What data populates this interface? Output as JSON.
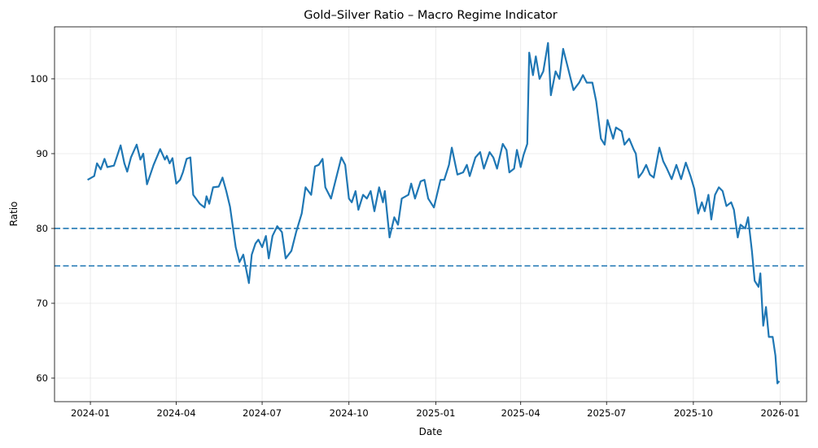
{
  "chart_data": {
    "type": "line",
    "title": "Gold–Silver Ratio – Macro Regime Indicator",
    "xlabel": "Date",
    "ylabel": "Ratio",
    "xlim": [
      "2023-11-24",
      "2026-01-29"
    ],
    "ylim": [
      56.85,
      106.95
    ],
    "grid": true,
    "x_ticks": [
      "2024-01",
      "2024-04",
      "2024-07",
      "2024-10",
      "2025-01",
      "2025-04",
      "2025-07",
      "2025-10",
      "2026-01"
    ],
    "y_ticks": [
      60,
      70,
      80,
      90,
      100
    ],
    "line_color": "#1f77b4",
    "reference_lines": [
      {
        "y": 80,
        "style": "dashed",
        "color": "#1f77b4"
      },
      {
        "y": 75,
        "style": "dashed",
        "color": "#1f77b4"
      }
    ],
    "series": [
      {
        "points": [
          [
            "2023-12-29",
            86.5
          ],
          [
            "2024-01-05",
            87.0
          ],
          [
            "2024-01-08",
            88.7
          ],
          [
            "2024-01-12",
            87.9
          ],
          [
            "2024-01-16",
            89.3
          ],
          [
            "2024-01-19",
            88.2
          ],
          [
            "2024-01-26",
            88.4
          ],
          [
            "2024-02-02",
            91.1
          ],
          [
            "2024-02-06",
            88.7
          ],
          [
            "2024-02-09",
            87.6
          ],
          [
            "2024-02-13",
            89.5
          ],
          [
            "2024-02-19",
            91.2
          ],
          [
            "2024-02-23",
            89.2
          ],
          [
            "2024-02-26",
            90.0
          ],
          [
            "2024-03-01",
            85.9
          ],
          [
            "2024-03-08",
            88.5
          ],
          [
            "2024-03-15",
            90.6
          ],
          [
            "2024-03-20",
            89.2
          ],
          [
            "2024-03-22",
            89.7
          ],
          [
            "2024-03-25",
            88.7
          ],
          [
            "2024-03-28",
            89.4
          ],
          [
            "2024-04-01",
            86.0
          ],
          [
            "2024-04-05",
            86.5
          ],
          [
            "2024-04-08",
            87.5
          ],
          [
            "2024-04-12",
            89.3
          ],
          [
            "2024-04-16",
            89.5
          ],
          [
            "2024-04-19",
            84.5
          ],
          [
            "2024-04-26",
            83.3
          ],
          [
            "2024-05-01",
            82.8
          ],
          [
            "2024-05-03",
            84.3
          ],
          [
            "2024-05-06",
            83.3
          ],
          [
            "2024-05-10",
            85.5
          ],
          [
            "2024-05-16",
            85.6
          ],
          [
            "2024-05-20",
            86.8
          ],
          [
            "2024-05-24",
            85.0
          ],
          [
            "2024-05-28",
            82.9
          ],
          [
            "2024-06-03",
            77.5
          ],
          [
            "2024-06-07",
            75.5
          ],
          [
            "2024-06-11",
            76.5
          ],
          [
            "2024-06-17",
            72.7
          ],
          [
            "2024-06-20",
            76.5
          ],
          [
            "2024-06-24",
            78.0
          ],
          [
            "2024-06-27",
            78.5
          ],
          [
            "2024-07-01",
            77.5
          ],
          [
            "2024-07-05",
            79.0
          ],
          [
            "2024-07-08",
            76.0
          ],
          [
            "2024-07-12",
            79.0
          ],
          [
            "2024-07-17",
            80.3
          ],
          [
            "2024-07-22",
            79.5
          ],
          [
            "2024-07-26",
            76.0
          ],
          [
            "2024-08-01",
            77.0
          ],
          [
            "2024-08-06",
            79.5
          ],
          [
            "2024-08-12",
            82.0
          ],
          [
            "2024-08-16",
            85.5
          ],
          [
            "2024-08-22",
            84.5
          ],
          [
            "2024-08-26",
            88.3
          ],
          [
            "2024-08-30",
            88.5
          ],
          [
            "2024-09-03",
            89.3
          ],
          [
            "2024-09-06",
            85.5
          ],
          [
            "2024-09-12",
            84.0
          ],
          [
            "2024-09-18",
            87.0
          ],
          [
            "2024-09-23",
            89.5
          ],
          [
            "2024-09-27",
            88.5
          ],
          [
            "2024-10-01",
            84.0
          ],
          [
            "2024-10-04",
            83.5
          ],
          [
            "2024-10-08",
            85.0
          ],
          [
            "2024-10-11",
            82.5
          ],
          [
            "2024-10-16",
            84.5
          ],
          [
            "2024-10-20",
            84.0
          ],
          [
            "2024-10-24",
            85.0
          ],
          [
            "2024-10-28",
            82.3
          ],
          [
            "2024-11-02",
            85.5
          ],
          [
            "2024-11-06",
            83.5
          ],
          [
            "2024-11-08",
            85.0
          ],
          [
            "2024-11-13",
            78.8
          ],
          [
            "2024-11-18",
            81.5
          ],
          [
            "2024-11-22",
            80.5
          ],
          [
            "2024-11-26",
            84.0
          ],
          [
            "2024-12-03",
            84.5
          ],
          [
            "2024-12-06",
            86.0
          ],
          [
            "2024-12-10",
            84.0
          ],
          [
            "2024-12-16",
            86.3
          ],
          [
            "2024-12-20",
            86.5
          ],
          [
            "2024-12-24",
            84.0
          ],
          [
            "2024-12-30",
            82.8
          ],
          [
            "2025-01-06",
            86.5
          ],
          [
            "2025-01-10",
            86.5
          ],
          [
            "2025-01-15",
            88.5
          ],
          [
            "2025-01-18",
            90.8
          ],
          [
            "2025-01-24",
            87.2
          ],
          [
            "2025-01-30",
            87.5
          ],
          [
            "2025-02-03",
            88.5
          ],
          [
            "2025-02-06",
            87.0
          ],
          [
            "2025-02-12",
            89.5
          ],
          [
            "2025-02-17",
            90.2
          ],
          [
            "2025-02-21",
            88.0
          ],
          [
            "2025-02-27",
            90.2
          ],
          [
            "2025-03-03",
            89.5
          ],
          [
            "2025-03-07",
            88.0
          ],
          [
            "2025-03-13",
            91.3
          ],
          [
            "2025-03-17",
            90.5
          ],
          [
            "2025-03-20",
            87.5
          ],
          [
            "2025-03-25",
            88.0
          ],
          [
            "2025-03-28",
            90.5
          ],
          [
            "2025-04-01",
            88.2
          ],
          [
            "2025-04-04",
            89.8
          ],
          [
            "2025-04-08",
            91.3
          ],
          [
            "2025-04-10",
            103.5
          ],
          [
            "2025-04-14",
            100.5
          ],
          [
            "2025-04-17",
            103.0
          ],
          [
            "2025-04-21",
            100.0
          ],
          [
            "2025-04-25",
            101.0
          ],
          [
            "2025-04-30",
            104.8
          ],
          [
            "2025-05-03",
            97.8
          ],
          [
            "2025-05-08",
            101.0
          ],
          [
            "2025-05-12",
            100.0
          ],
          [
            "2025-05-16",
            104.0
          ],
          [
            "2025-05-21",
            101.5
          ],
          [
            "2025-05-27",
            98.5
          ],
          [
            "2025-06-02",
            99.5
          ],
          [
            "2025-06-06",
            100.5
          ],
          [
            "2025-06-10",
            99.5
          ],
          [
            "2025-06-16",
            99.5
          ],
          [
            "2025-06-20",
            97.0
          ],
          [
            "2025-06-25",
            92.0
          ],
          [
            "2025-06-29",
            91.2
          ],
          [
            "2025-07-02",
            94.5
          ],
          [
            "2025-07-08",
            92.0
          ],
          [
            "2025-07-11",
            93.5
          ],
          [
            "2025-07-17",
            93.0
          ],
          [
            "2025-07-20",
            91.2
          ],
          [
            "2025-07-25",
            92.0
          ],
          [
            "2025-07-30",
            90.5
          ],
          [
            "2025-08-01",
            90.0
          ],
          [
            "2025-08-04",
            86.8
          ],
          [
            "2025-08-08",
            87.5
          ],
          [
            "2025-08-12",
            88.5
          ],
          [
            "2025-08-16",
            87.2
          ],
          [
            "2025-08-20",
            86.8
          ],
          [
            "2025-08-26",
            90.8
          ],
          [
            "2025-08-30",
            89.0
          ],
          [
            "2025-09-03",
            88.0
          ],
          [
            "2025-09-08",
            86.6
          ],
          [
            "2025-09-13",
            88.5
          ],
          [
            "2025-09-18",
            86.6
          ],
          [
            "2025-09-23",
            88.8
          ],
          [
            "2025-09-28",
            87.0
          ],
          [
            "2025-10-02",
            85.3
          ],
          [
            "2025-10-06",
            82.0
          ],
          [
            "2025-10-10",
            83.5
          ],
          [
            "2025-10-13",
            82.3
          ],
          [
            "2025-10-17",
            84.5
          ],
          [
            "2025-10-20",
            81.2
          ],
          [
            "2025-10-24",
            84.5
          ],
          [
            "2025-10-28",
            85.5
          ],
          [
            "2025-11-01",
            85.0
          ],
          [
            "2025-11-05",
            83.0
          ],
          [
            "2025-11-10",
            83.5
          ],
          [
            "2025-11-13",
            82.5
          ],
          [
            "2025-11-17",
            78.8
          ],
          [
            "2025-11-20",
            80.5
          ],
          [
            "2025-11-25",
            80.0
          ],
          [
            "2025-11-28",
            81.5
          ],
          [
            "2025-12-02",
            77.0
          ],
          [
            "2025-12-05",
            73.0
          ],
          [
            "2025-12-09",
            72.2
          ],
          [
            "2025-12-11",
            74.0
          ],
          [
            "2025-12-14",
            67.0
          ],
          [
            "2025-12-17",
            69.5
          ],
          [
            "2025-12-20",
            65.5
          ],
          [
            "2025-12-24",
            65.5
          ],
          [
            "2025-12-27",
            63.0
          ],
          [
            "2025-12-29",
            59.3
          ],
          [
            "2025-12-31",
            59.6
          ]
        ]
      }
    ]
  }
}
